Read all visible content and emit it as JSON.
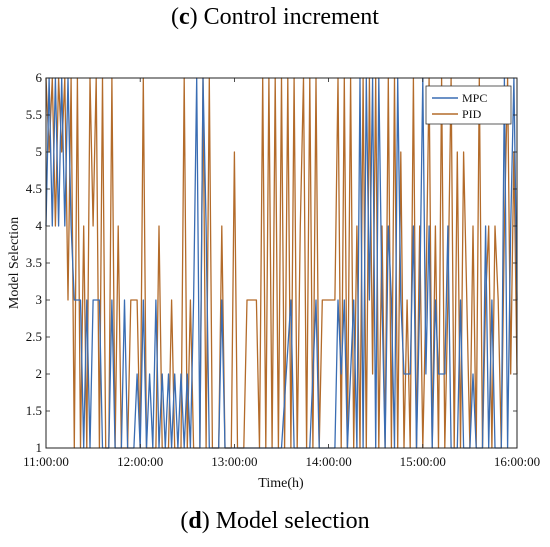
{
  "captions": {
    "top": {
      "letter": "c",
      "text": " Control increment"
    },
    "bottom": {
      "letter": "d",
      "text": " Model selection"
    }
  },
  "chart_data": {
    "type": "line",
    "xlabel": "Time(h)",
    "ylabel": "Model Selection",
    "x_range": [
      "11:00:00",
      "16:00:00"
    ],
    "x_ticks": [
      "11:00:00",
      "12:00:00",
      "13:00:00",
      "14:00:00",
      "15:00:00",
      "16:00:00"
    ],
    "ylim": [
      1,
      6
    ],
    "y_ticks": [
      1,
      1.5,
      2,
      2.5,
      3,
      3.5,
      4,
      4.5,
      5,
      5.5,
      6
    ],
    "y_tick_labels": [
      "1",
      "1.5",
      "2",
      "2.5",
      "3",
      "3.5",
      "4",
      "4.5",
      "5",
      "5.5",
      "6"
    ],
    "grid": false,
    "legend_position": "top-right",
    "series": [
      {
        "name": "MPC",
        "color": "#3a6db3",
        "points": [
          [
            "11:00:00",
            4
          ],
          [
            "11:02:00",
            6
          ],
          [
            "11:04:00",
            4
          ],
          [
            "11:06:00",
            6
          ],
          [
            "11:08:00",
            4
          ],
          [
            "11:10:00",
            6
          ],
          [
            "11:12:00",
            4
          ],
          [
            "11:14:00",
            6
          ],
          [
            "11:16:00",
            4
          ],
          [
            "11:18:00",
            3
          ],
          [
            "11:22:00",
            3
          ],
          [
            "11:24:00",
            1
          ],
          [
            "11:26:00",
            3
          ],
          [
            "11:28:00",
            1
          ],
          [
            "11:30:00",
            3
          ],
          [
            "11:34:00",
            3
          ],
          [
            "11:36:00",
            1
          ],
          [
            "11:40:00",
            1
          ],
          [
            "11:42:00",
            3
          ],
          [
            "11:44:00",
            1
          ],
          [
            "11:48:00",
            1
          ],
          [
            "11:50:00",
            3
          ],
          [
            "11:52:00",
            1
          ],
          [
            "11:56:00",
            1
          ],
          [
            "11:58:00",
            2
          ],
          [
            "12:00:00",
            1
          ],
          [
            "12:02:00",
            3
          ],
          [
            "12:04:00",
            1
          ],
          [
            "12:06:00",
            2
          ],
          [
            "12:08:00",
            1
          ],
          [
            "12:10:00",
            3
          ],
          [
            "12:12:00",
            1
          ],
          [
            "12:14:00",
            2
          ],
          [
            "12:16:00",
            1
          ],
          [
            "12:18:00",
            2
          ],
          [
            "12:20:00",
            1
          ],
          [
            "12:22:00",
            2
          ],
          [
            "12:24:00",
            1
          ],
          [
            "12:26:00",
            2
          ],
          [
            "12:28:00",
            1
          ],
          [
            "12:30:00",
            2
          ],
          [
            "12:32:00",
            1
          ],
          [
            "12:34:00",
            3
          ],
          [
            "12:36:00",
            6
          ],
          [
            "12:38:00",
            1
          ],
          [
            "12:40:00",
            6
          ],
          [
            "12:42:00",
            4
          ],
          [
            "12:44:00",
            1
          ],
          [
            "12:50:00",
            1
          ],
          [
            "12:52:00",
            3
          ],
          [
            "12:54:00",
            1
          ],
          [
            "13:00:00",
            1
          ],
          [
            "13:30:00",
            1
          ],
          [
            "13:36:00",
            3
          ],
          [
            "13:38:00",
            1
          ],
          [
            "13:48:00",
            1
          ],
          [
            "13:52:00",
            3
          ],
          [
            "13:54:00",
            1
          ],
          [
            "14:04:00",
            1
          ],
          [
            "14:06:00",
            3
          ],
          [
            "14:08:00",
            2
          ],
          [
            "14:10:00",
            3
          ],
          [
            "14:12:00",
            1
          ],
          [
            "14:16:00",
            3
          ],
          [
            "14:18:00",
            1
          ],
          [
            "14:20:00",
            6
          ],
          [
            "14:22:00",
            1
          ],
          [
            "14:24:00",
            6
          ],
          [
            "14:26:00",
            3
          ],
          [
            "14:28:00",
            6
          ],
          [
            "14:30:00",
            1
          ],
          [
            "14:32:00",
            6
          ],
          [
            "14:34:00",
            3
          ],
          [
            "14:36:00",
            1
          ],
          [
            "14:38:00",
            4
          ],
          [
            "14:40:00",
            3
          ],
          [
            "14:42:00",
            1
          ],
          [
            "14:44:00",
            6
          ],
          [
            "14:46:00",
            3
          ],
          [
            "14:48:00",
            2
          ],
          [
            "14:52:00",
            2
          ],
          [
            "14:54:00",
            4
          ],
          [
            "14:56:00",
            1
          ],
          [
            "14:58:00",
            3
          ],
          [
            "15:00:00",
            6
          ],
          [
            "15:02:00",
            2
          ],
          [
            "15:04:00",
            4
          ],
          [
            "15:06:00",
            1
          ],
          [
            "15:08:00",
            3
          ],
          [
            "15:10:00",
            2
          ],
          [
            "15:14:00",
            2
          ],
          [
            "15:16:00",
            4
          ],
          [
            "15:18:00",
            1
          ],
          [
            "15:22:00",
            1
          ],
          [
            "15:24:00",
            3
          ],
          [
            "15:26:00",
            1
          ],
          [
            "15:30:00",
            1
          ],
          [
            "15:32:00",
            2
          ],
          [
            "15:34:00",
            1
          ],
          [
            "15:38:00",
            1
          ],
          [
            "15:40:00",
            4
          ],
          [
            "15:42:00",
            1
          ],
          [
            "15:44:00",
            3
          ],
          [
            "15:46:00",
            1
          ],
          [
            "15:50:00",
            1
          ],
          [
            "15:52:00",
            6
          ],
          [
            "15:54:00",
            1
          ],
          [
            "15:56:00",
            4
          ],
          [
            "15:58:00",
            6
          ],
          [
            "16:00:00",
            3
          ]
        ]
      },
      {
        "name": "PID",
        "color": "#b36b2a",
        "points": [
          [
            "11:00:00",
            6
          ],
          [
            "11:02:00",
            5
          ],
          [
            "11:04:00",
            6
          ],
          [
            "11:06:00",
            4
          ],
          [
            "11:08:00",
            6
          ],
          [
            "11:10:00",
            5
          ],
          [
            "11:12:00",
            6
          ],
          [
            "11:14:00",
            3
          ],
          [
            "11:16:00",
            6
          ],
          [
            "11:18:00",
            1
          ],
          [
            "11:20:00",
            6
          ],
          [
            "11:22:00",
            1
          ],
          [
            "11:24:00",
            4
          ],
          [
            "11:26:00",
            1
          ],
          [
            "11:28:00",
            6
          ],
          [
            "11:30:00",
            4
          ],
          [
            "11:32:00",
            6
          ],
          [
            "11:34:00",
            1
          ],
          [
            "11:36:00",
            6
          ],
          [
            "11:38:00",
            1
          ],
          [
            "11:40:00",
            1
          ],
          [
            "11:42:00",
            6
          ],
          [
            "11:44:00",
            1
          ],
          [
            "11:46:00",
            4
          ],
          [
            "11:48:00",
            1
          ],
          [
            "11:52:00",
            1
          ],
          [
            "11:54:00",
            3
          ],
          [
            "11:58:00",
            3
          ],
          [
            "12:00:00",
            1
          ],
          [
            "12:02:00",
            6
          ],
          [
            "12:04:00",
            1
          ],
          [
            "12:10:00",
            1
          ],
          [
            "12:12:00",
            4
          ],
          [
            "12:14:00",
            1
          ],
          [
            "12:18:00",
            1
          ],
          [
            "12:20:00",
            3
          ],
          [
            "12:22:00",
            1
          ],
          [
            "12:26:00",
            1
          ],
          [
            "12:28:00",
            6
          ],
          [
            "12:30:00",
            1
          ],
          [
            "12:32:00",
            3
          ],
          [
            "12:34:00",
            1
          ],
          [
            "12:38:00",
            1
          ],
          [
            "12:40:00",
            6
          ],
          [
            "12:42:00",
            1
          ],
          [
            "12:44:00",
            6
          ],
          [
            "12:46:00",
            1
          ],
          [
            "12:50:00",
            1
          ],
          [
            "12:52:00",
            4
          ],
          [
            "12:54:00",
            1
          ],
          [
            "12:58:00",
            1
          ],
          [
            "13:00:00",
            5
          ],
          [
            "13:02:00",
            1
          ],
          [
            "13:06:00",
            1
          ],
          [
            "13:08:00",
            3
          ],
          [
            "13:14:00",
            3
          ],
          [
            "13:16:00",
            1
          ],
          [
            "13:18:00",
            6
          ],
          [
            "13:20:00",
            1
          ],
          [
            "13:22:00",
            6
          ],
          [
            "13:24:00",
            1
          ],
          [
            "13:26:00",
            6
          ],
          [
            "13:28:00",
            1
          ],
          [
            "13:30:00",
            6
          ],
          [
            "13:32:00",
            1
          ],
          [
            "13:34:00",
            6
          ],
          [
            "13:36:00",
            1
          ],
          [
            "13:38:00",
            6
          ],
          [
            "13:40:00",
            1
          ],
          [
            "13:42:00",
            4
          ],
          [
            "13:44:00",
            6
          ],
          [
            "13:46:00",
            1
          ],
          [
            "13:48:00",
            6
          ],
          [
            "13:50:00",
            1
          ],
          [
            "13:52:00",
            6
          ],
          [
            "13:54:00",
            1
          ],
          [
            "13:56:00",
            3
          ],
          [
            "14:04:00",
            3
          ],
          [
            "14:06:00",
            6
          ],
          [
            "14:08:00",
            1
          ],
          [
            "14:10:00",
            6
          ],
          [
            "14:12:00",
            1
          ],
          [
            "14:14:00",
            6
          ],
          [
            "14:16:00",
            1
          ],
          [
            "14:18:00",
            4
          ],
          [
            "14:20:00",
            1
          ],
          [
            "14:22:00",
            6
          ],
          [
            "14:24:00",
            1
          ],
          [
            "14:26:00",
            6
          ],
          [
            "14:28:00",
            2
          ],
          [
            "14:30:00",
            6
          ],
          [
            "14:32:00",
            1
          ],
          [
            "14:34:00",
            4
          ],
          [
            "14:36:00",
            1
          ],
          [
            "14:38:00",
            6
          ],
          [
            "14:40:00",
            1
          ],
          [
            "14:42:00",
            6
          ],
          [
            "14:44:00",
            1
          ],
          [
            "14:46:00",
            5
          ],
          [
            "14:48:00",
            1
          ],
          [
            "14:50:00",
            3
          ],
          [
            "14:52:00",
            1
          ],
          [
            "14:54:00",
            6
          ],
          [
            "14:56:00",
            1
          ],
          [
            "14:58:00",
            4
          ],
          [
            "15:00:00",
            1
          ],
          [
            "15:02:00",
            3
          ],
          [
            "15:04:00",
            6
          ],
          [
            "15:06:00",
            1
          ],
          [
            "15:08:00",
            4
          ],
          [
            "15:10:00",
            1
          ],
          [
            "15:12:00",
            6
          ],
          [
            "15:14:00",
            1
          ],
          [
            "15:16:00",
            3
          ],
          [
            "15:18:00",
            6
          ],
          [
            "15:20:00",
            1
          ],
          [
            "15:22:00",
            5
          ],
          [
            "15:24:00",
            1
          ],
          [
            "15:26:00",
            5
          ],
          [
            "15:28:00",
            3
          ],
          [
            "15:30:00",
            1
          ],
          [
            "15:32:00",
            4
          ],
          [
            "15:34:00",
            1
          ],
          [
            "15:36:00",
            6
          ],
          [
            "15:38:00",
            1
          ],
          [
            "15:40:00",
            3
          ],
          [
            "15:42:00",
            4
          ],
          [
            "15:44:00",
            1
          ],
          [
            "15:46:00",
            4
          ],
          [
            "15:48:00",
            3
          ],
          [
            "15:50:00",
            1
          ],
          [
            "15:52:00",
            4
          ],
          [
            "15:54:00",
            6
          ],
          [
            "15:56:00",
            2
          ],
          [
            "15:58:00",
            5
          ],
          [
            "16:00:00",
            2
          ]
        ]
      }
    ]
  }
}
